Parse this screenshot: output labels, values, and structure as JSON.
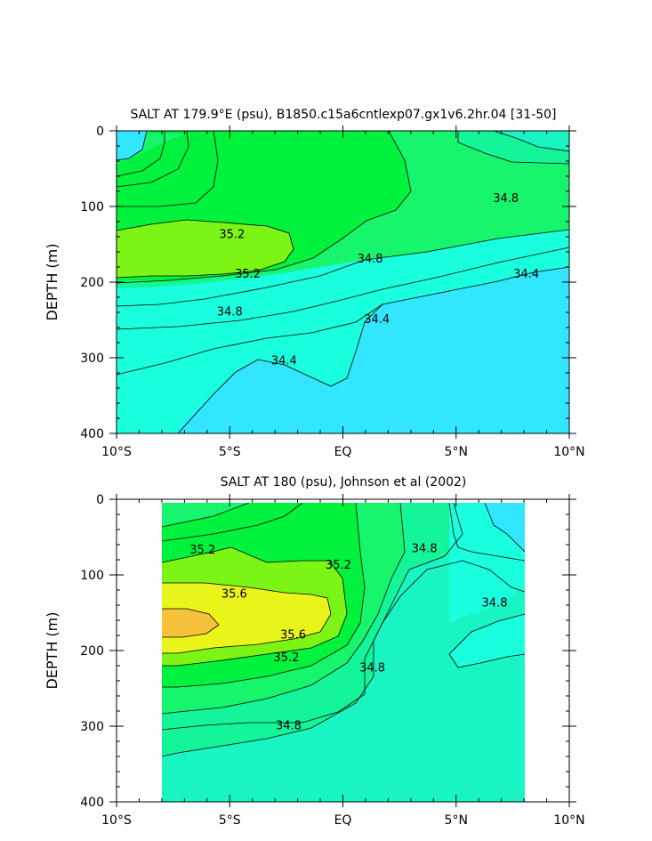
{
  "colors": {
    "lt_34_4": "#33e6ff",
    "c34_4_34_6": "#1affdd",
    "c34_6_34_8": "#19f5c2",
    "c34_8_35_0": "#14f59a",
    "c35_0_35_2": "#17f56d",
    "c35_2_35_4": "#00f23c",
    "c35_4_35_6": "#7cf516",
    "c35_6_35_8": "#e9f51a",
    "gt_35_8": "#f5c23a"
  },
  "chart_data": [
    {
      "type": "contour",
      "title": "SALT AT 179.9°E (psu), B1850.c15a6cntlexp07.gx1v6.2hr.04 [31-50]",
      "xlabel": "",
      "ylabel": "DEPTH (m)",
      "x_ticks": [
        "10°S",
        "5°S",
        "EQ",
        "5°N",
        "10°N"
      ],
      "x_tick_values": [
        -10,
        -5,
        0,
        5,
        10
      ],
      "y_ticks": [
        "0",
        "100",
        "200",
        "300",
        "400"
      ],
      "y_tick_values": [
        0,
        100,
        200,
        300,
        400
      ],
      "xlim": [
        -10,
        10
      ],
      "ylim": [
        400,
        0
      ],
      "contour_labels": [
        {
          "text": "35.2",
          "lat": -4.9,
          "depth": 136
        },
        {
          "text": "35.2",
          "lat": -4.2,
          "depth": 188
        },
        {
          "text": "34.8",
          "lat": 1.2,
          "depth": 168
        },
        {
          "text": "34.8",
          "lat": 7.2,
          "depth": 88
        },
        {
          "text": "34.8",
          "lat": -5.0,
          "depth": 238
        },
        {
          "text": "34.4",
          "lat": -2.6,
          "depth": 303
        },
        {
          "text": "34.4",
          "lat": 1.5,
          "depth": 248
        },
        {
          "text": "34.4",
          "lat": 8.1,
          "depth": 188
        }
      ]
    },
    {
      "type": "contour",
      "title": "SALT AT 180 (psu), Johnson et al (2002)",
      "xlabel": "",
      "ylabel": "DEPTH (m)",
      "x_ticks": [
        "10°S",
        "5°S",
        "EQ",
        "5°N",
        "10°N"
      ],
      "x_tick_values": [
        -10,
        -5,
        0,
        5,
        10
      ],
      "y_ticks": [
        "0",
        "100",
        "200",
        "300",
        "400"
      ],
      "y_tick_values": [
        0,
        100,
        200,
        300,
        400
      ],
      "xlim": [
        -10,
        10
      ],
      "ylim": [
        400,
        0
      ],
      "data_lat_range": [
        -8,
        8
      ],
      "contour_labels": [
        {
          "text": "35.2",
          "lat": -6.2,
          "depth": 66
        },
        {
          "text": "35.2",
          "lat": -0.2,
          "depth": 86
        },
        {
          "text": "35.6",
          "lat": -4.8,
          "depth": 124
        },
        {
          "text": "35.6",
          "lat": -2.2,
          "depth": 178
        },
        {
          "text": "35.2",
          "lat": -2.5,
          "depth": 208
        },
        {
          "text": "34.8",
          "lat": 3.6,
          "depth": 64
        },
        {
          "text": "34.8",
          "lat": 6.7,
          "depth": 136
        },
        {
          "text": "34.8",
          "lat": 1.3,
          "depth": 222
        },
        {
          "text": "34.8",
          "lat": -2.4,
          "depth": 298
        }
      ]
    }
  ]
}
